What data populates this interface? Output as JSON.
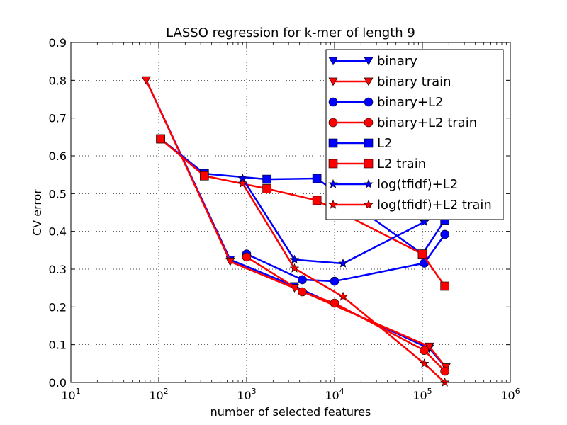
{
  "chart_data": {
    "type": "line",
    "title": "LASSO regression for k-mer of length 9",
    "xlabel": "number of selected features",
    "ylabel": "CV error",
    "xscale": "log",
    "xlim": [
      10,
      1000000
    ],
    "ylim": [
      0,
      0.9
    ],
    "x_ticks": [
      {
        "value": 10,
        "base": "10",
        "exp": "1"
      },
      {
        "value": 100,
        "base": "10",
        "exp": "2"
      },
      {
        "value": 1000,
        "base": "10",
        "exp": "3"
      },
      {
        "value": 10000,
        "base": "10",
        "exp": "4"
      },
      {
        "value": 100000,
        "base": "10",
        "exp": "5"
      },
      {
        "value": 1000000,
        "base": "10",
        "exp": "6"
      }
    ],
    "y_ticks": [
      "0.0",
      "0.1",
      "0.2",
      "0.3",
      "0.4",
      "0.5",
      "0.6",
      "0.7",
      "0.8",
      "0.9"
    ],
    "grid": true,
    "legend_position": "top-right",
    "series": [
      {
        "name": "binary",
        "color": "#0000ff",
        "marker": "triangle-down",
        "x": [
          72,
          650,
          3500,
          120000,
          185000
        ],
        "y": [
          0.8,
          0.325,
          0.255,
          0.09,
          0.04
        ]
      },
      {
        "name": "binary train",
        "color": "#ff0000",
        "marker": "triangle-down",
        "x": [
          72,
          650,
          3500,
          120000,
          185000
        ],
        "y": [
          0.8,
          0.32,
          0.25,
          0.095,
          0.04
        ]
      },
      {
        "name": "binary+L2",
        "color": "#0000ff",
        "marker": "circle",
        "x": [
          1000,
          4300,
          10000,
          105000,
          180000
        ],
        "y": [
          0.34,
          0.272,
          0.268,
          0.316,
          0.392
        ]
      },
      {
        "name": "binary+L2 train",
        "color": "#ff0000",
        "marker": "circle",
        "x": [
          1000,
          4300,
          10000,
          105000,
          180000
        ],
        "y": [
          0.332,
          0.24,
          0.21,
          0.085,
          0.03
        ]
      },
      {
        "name": "L2",
        "color": "#0000ff",
        "marker": "square",
        "x": [
          105,
          330,
          1700,
          6300,
          100000,
          180000
        ],
        "y": [
          0.645,
          0.553,
          0.538,
          0.54,
          0.34,
          0.43
        ]
      },
      {
        "name": "L2 train",
        "color": "#ff0000",
        "marker": "square",
        "x": [
          105,
          330,
          1700,
          6300,
          100000,
          180000
        ],
        "y": [
          0.645,
          0.547,
          0.513,
          0.482,
          0.34,
          0.255
        ]
      },
      {
        "name": "log(tfidf)+L2",
        "color": "#0000ff",
        "marker": "star",
        "x": [
          900,
          3500,
          12500,
          105000
        ],
        "y": [
          0.54,
          0.325,
          0.315,
          0.425
        ]
      },
      {
        "name": "log(tfidf)+L2 train",
        "color": "#ff0000",
        "marker": "star",
        "x": [
          900,
          3500,
          12500,
          105000,
          180000
        ],
        "y": [
          0.527,
          0.302,
          0.227,
          0.05,
          0.0
        ]
      }
    ]
  }
}
